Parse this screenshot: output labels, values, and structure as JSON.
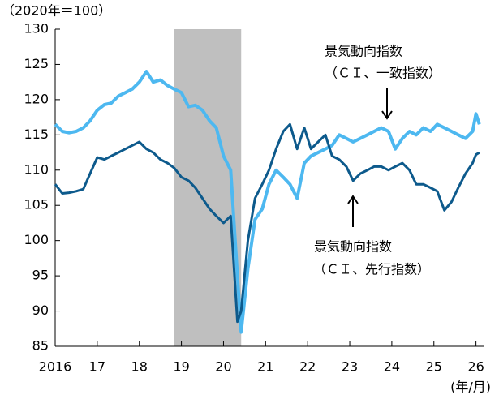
{
  "chart_data": {
    "type": "line",
    "ylabel": "（2020年＝100）",
    "xlabel": "(年/月)",
    "x": [
      2016,
      2016.17,
      2016.33,
      2016.5,
      2016.67,
      2016.83,
      2017,
      2017.17,
      2017.33,
      2017.5,
      2017.67,
      2017.83,
      2018,
      2018.17,
      2018.33,
      2018.5,
      2018.67,
      2018.83,
      2019,
      2019.17,
      2019.33,
      2019.5,
      2019.67,
      2019.83,
      2020,
      2020.17,
      2020.33,
      2020.42,
      2020.58,
      2020.75,
      2020.92,
      2021.08,
      2021.25,
      2021.42,
      2021.58,
      2021.75,
      2021.92,
      2022.08,
      2022.25,
      2022.42,
      2022.58,
      2022.75,
      2022.92,
      2023.08,
      2023.25,
      2023.42,
      2023.58,
      2023.75,
      2023.92,
      2024.08,
      2024.25,
      2024.42,
      2024.58,
      2024.75,
      2024.92,
      2025.08,
      2025.25,
      2025.42,
      2025.58,
      2025.75,
      2025.92,
      2026,
      2026.08
    ],
    "series": [
      {
        "name": "景気動向指数（ＣＩ、一致指数）",
        "color": "#4db8f0",
        "values": [
          116.5,
          115.5,
          115.3,
          115.5,
          116,
          117,
          118.5,
          119.3,
          119.5,
          120.5,
          121,
          121.5,
          122.5,
          124,
          122.5,
          122.8,
          122,
          121.5,
          121,
          119,
          119.2,
          118.5,
          117,
          116,
          112,
          110,
          95,
          87,
          96,
          103,
          104.5,
          108,
          110,
          109,
          108,
          106,
          111,
          112,
          112.5,
          113,
          113.5,
          115,
          114.5,
          114,
          114.5,
          115,
          115.5,
          116,
          115.5,
          113,
          114.5,
          115.5,
          115,
          116,
          115.5,
          116.5,
          116,
          115.5,
          115,
          114.5,
          115.5,
          118,
          116.5
        ]
      },
      {
        "name": "景気動向指数（ＣＩ、先行指数）",
        "color": "#0d5a8c",
        "values": [
          108,
          106.7,
          106.8,
          107,
          107.3,
          109.5,
          111.8,
          111.5,
          112,
          112.5,
          113,
          113.5,
          114,
          113,
          112.5,
          111.5,
          111,
          110.3,
          109,
          108.5,
          107.5,
          106,
          104.5,
          103.5,
          102.5,
          103.5,
          88.5,
          90,
          100,
          106,
          108,
          110,
          113,
          115.5,
          116.5,
          113,
          116,
          113,
          114,
          115,
          112,
          111.5,
          110.5,
          108.5,
          109.5,
          110,
          110.5,
          110.5,
          110,
          110.5,
          111,
          110,
          108,
          108,
          107.5,
          107,
          104.3,
          105.5,
          107.5,
          109.5,
          111,
          112.2,
          112.5
        ]
      }
    ],
    "annotations": [
      "景気動向指数",
      "（ＣＩ、一致指数）",
      "景気動向指数",
      "（ＣＩ、先行指数）"
    ],
    "shade": [
      2018.83,
      2020.42
    ],
    "shade_color": "#bfbfbf",
    "xlim": [
      2016,
      2026.2
    ],
    "xticks": [
      {
        "value": 2016,
        "label": "2016"
      },
      {
        "value": 2017,
        "label": "17"
      },
      {
        "value": 2018,
        "label": "18"
      },
      {
        "value": 2019,
        "label": "19"
      },
      {
        "value": 2020,
        "label": "20"
      },
      {
        "value": 2021,
        "label": "21"
      },
      {
        "value": 2022,
        "label": "22"
      },
      {
        "value": 2023,
        "label": "23"
      },
      {
        "value": 2024,
        "label": "24"
      },
      {
        "value": 2025,
        "label": "25"
      },
      {
        "value": 2026,
        "label": "26"
      }
    ],
    "ylim": [
      85,
      130
    ],
    "yticks": [
      85,
      90,
      95,
      100,
      105,
      110,
      115,
      120,
      125,
      130
    ],
    "grid": false
  }
}
